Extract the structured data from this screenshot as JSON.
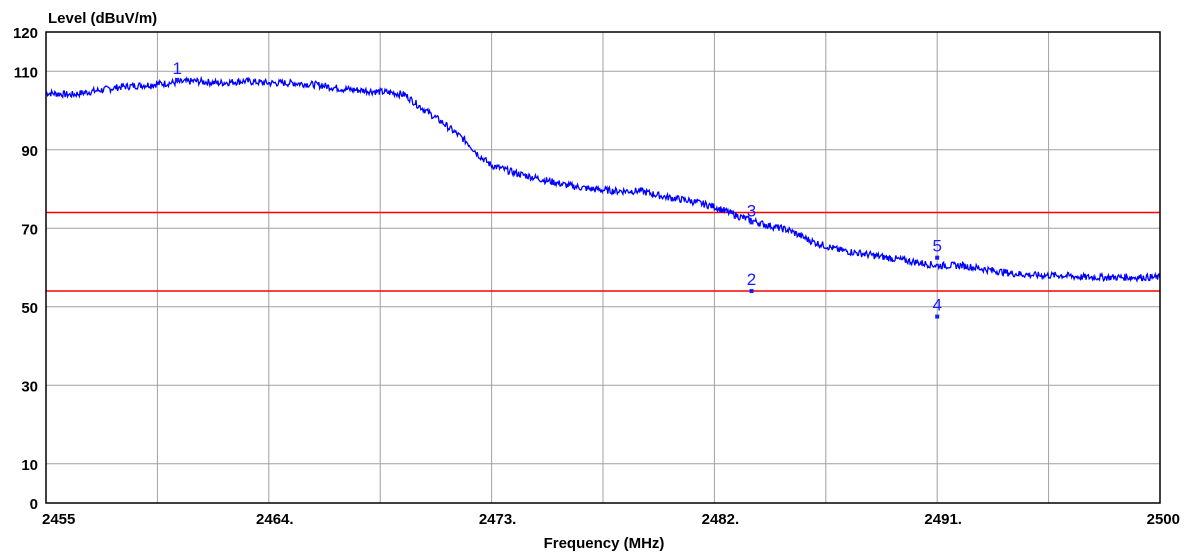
{
  "chart_data": {
    "type": "line",
    "ylabel": "Level (dBuV/m)",
    "xlabel": "Frequency (MHz)",
    "xlim": [
      2455,
      2500
    ],
    "ylim": [
      0,
      120
    ],
    "x_ticks": [
      {
        "value": 2455,
        "label": "2455"
      },
      {
        "value": 2464,
        "label": "2464."
      },
      {
        "value": 2473,
        "label": "2473."
      },
      {
        "value": 2482,
        "label": "2482."
      },
      {
        "value": 2491,
        "label": "2491."
      },
      {
        "value": 2500,
        "label": "2500"
      }
    ],
    "x_gridlines": [
      2459.5,
      2464,
      2468.5,
      2473,
      2477.5,
      2482,
      2486.5,
      2491,
      2495.5
    ],
    "y_ticks": [
      {
        "value": 0,
        "label": "0"
      },
      {
        "value": 10,
        "label": "10"
      },
      {
        "value": 30,
        "label": "30"
      },
      {
        "value": 50,
        "label": "50"
      },
      {
        "value": 70,
        "label": "70"
      },
      {
        "value": 90,
        "label": "90"
      },
      {
        "value": 110,
        "label": "110"
      },
      {
        "value": 120,
        "label": "120"
      }
    ],
    "y_gridlines": [
      10,
      30,
      50,
      70,
      90,
      110
    ],
    "grid": true,
    "limit_lines": [
      {
        "value": 74,
        "color": "#ff0000"
      },
      {
        "value": 54,
        "color": "#ff0000"
      }
    ],
    "series": [
      {
        "color": "#0000ff",
        "x": [
          2455,
          2456,
          2457,
          2458,
          2459,
          2460,
          2461,
          2462,
          2463,
          2464,
          2465,
          2466,
          2467,
          2468,
          2469,
          2469.5,
          2470,
          2471,
          2472,
          2472.5,
          2473,
          2474,
          2475,
          2476,
          2477,
          2478,
          2479,
          2480,
          2481,
          2482,
          2483,
          2484,
          2485,
          2486,
          2487,
          2488,
          2489,
          2490,
          2491,
          2492,
          2493,
          2494,
          2495,
          2496,
          2497,
          2498,
          2499,
          2500
        ],
        "y": [
          104.5,
          104,
          105,
          106,
          106.5,
          107,
          107.5,
          107,
          107.5,
          107,
          107,
          106.5,
          105.5,
          105,
          104.5,
          104,
          101.5,
          97,
          92,
          88.5,
          86,
          84,
          82.5,
          81,
          80,
          79.5,
          79.5,
          78,
          77,
          75.5,
          73,
          71,
          69.5,
          66.5,
          64.5,
          63.5,
          62.5,
          61.5,
          60.5,
          60.5,
          59.5,
          58.5,
          58,
          58,
          57.5,
          57.5,
          57.5,
          57.5
        ]
      }
    ],
    "markers": [
      {
        "label": "1",
        "x": 2460.3,
        "y": 107.8
      },
      {
        "label": "2",
        "x": 2483.5,
        "y": 54
      },
      {
        "label": "3",
        "x": 2483.5,
        "y": 71.5
      },
      {
        "label": "4",
        "x": 2491,
        "y": 47.5
      },
      {
        "label": "5",
        "x": 2491,
        "y": 62.5
      }
    ],
    "marker_color": "#1a1aff"
  }
}
